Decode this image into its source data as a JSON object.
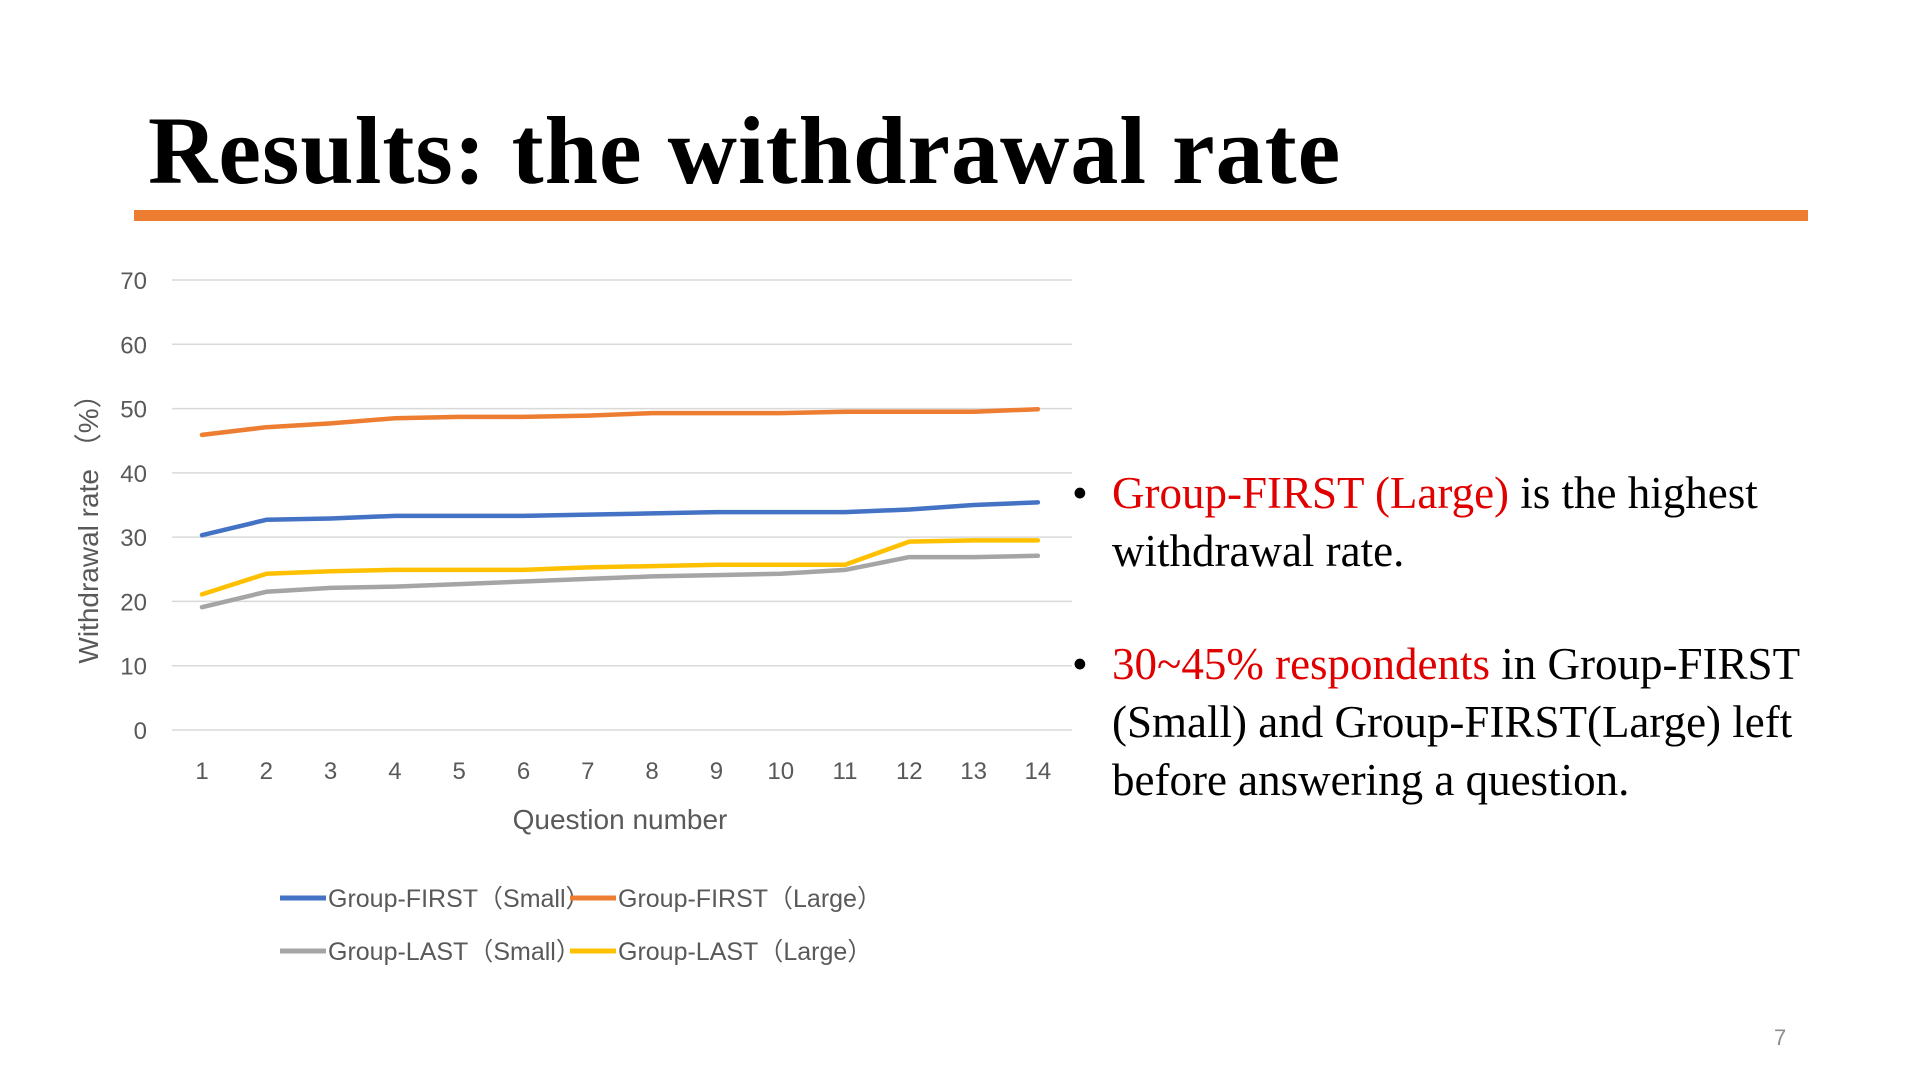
{
  "slide": {
    "title": "Results: the withdrawal rate",
    "page_number": "7",
    "accent_color": "#ED7D31",
    "highlight_color": "#E00000"
  },
  "bullets": [
    {
      "bullet": "•",
      "highlight": "Group-FIRST (Large)",
      "text": " is the highest withdrawal rate."
    },
    {
      "bullet": "•",
      "highlight": "30~45% respondents",
      "text": " in Group-FIRST (Small) and Group-FIRST(Large) left before answering a question."
    }
  ],
  "chart_data": {
    "type": "line",
    "title": "",
    "xlabel": "Question number",
    "ylabel": "Withdrawal rate （%）",
    "x": [
      1,
      2,
      3,
      4,
      5,
      6,
      7,
      8,
      9,
      10,
      11,
      12,
      13,
      14
    ],
    "ylim": [
      0,
      70
    ],
    "yticks": [
      0,
      10,
      20,
      30,
      40,
      50,
      60,
      70
    ],
    "grid": true,
    "legend_position": "bottom",
    "series": [
      {
        "name": "Group-FIRST（Small）",
        "color": "#4472C4",
        "values": [
          30.3,
          32.7,
          32.9,
          33.3,
          33.3,
          33.3,
          33.5,
          33.7,
          33.9,
          33.9,
          33.9,
          34.3,
          35.0,
          35.4
        ]
      },
      {
        "name": "Group-FIRST（Large）",
        "color": "#ED7D31",
        "values": [
          45.9,
          47.1,
          47.7,
          48.5,
          48.7,
          48.7,
          48.9,
          49.3,
          49.3,
          49.3,
          49.5,
          49.5,
          49.5,
          49.9
        ]
      },
      {
        "name": "Group-LAST（Small）",
        "color": "#A5A5A5",
        "values": [
          19.1,
          21.5,
          22.1,
          22.3,
          22.7,
          23.1,
          23.5,
          23.9,
          24.1,
          24.3,
          24.9,
          26.9,
          26.9,
          27.1
        ]
      },
      {
        "name": "Group-LAST（Large）",
        "color": "#FFC000",
        "values": [
          21.1,
          24.3,
          24.7,
          24.9,
          24.9,
          24.9,
          25.3,
          25.5,
          25.7,
          25.7,
          25.7,
          29.3,
          29.5,
          29.5
        ]
      }
    ]
  }
}
